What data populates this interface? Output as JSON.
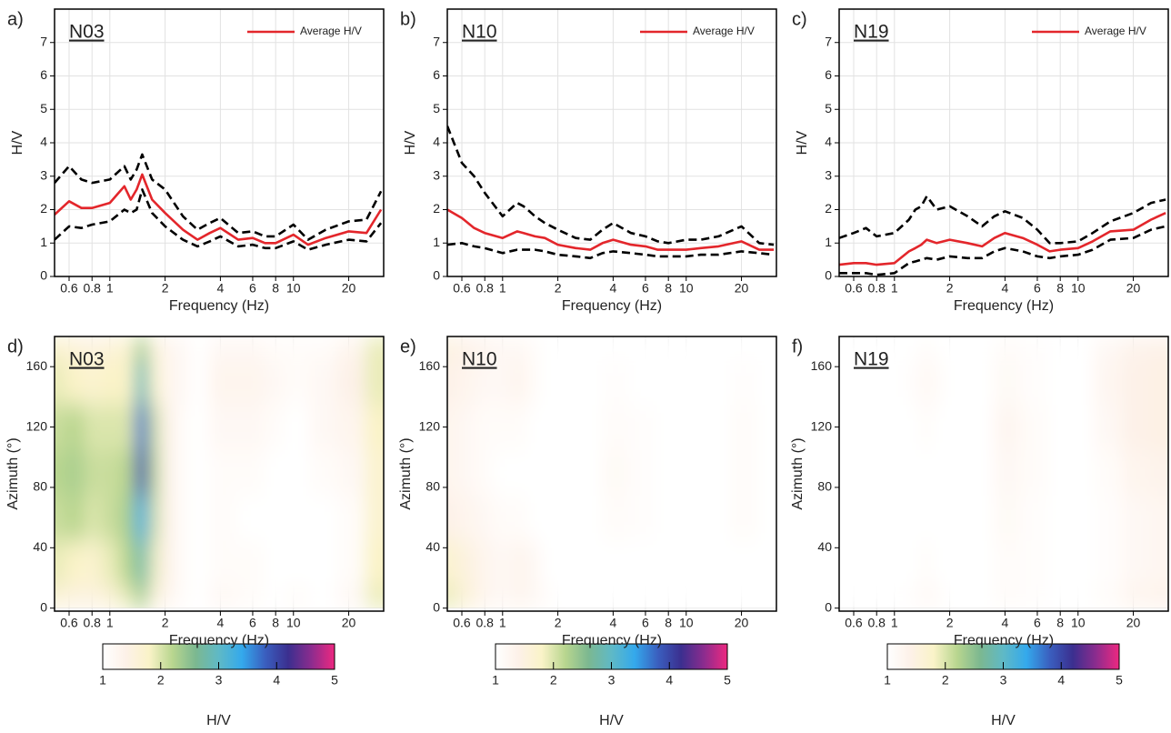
{
  "chart_data": [
    {
      "type": "line",
      "panel_label": "a)",
      "station": "N03",
      "xlabel": "Frequency (Hz)",
      "ylabel": "H/V",
      "log_x": true,
      "grid": true,
      "legend": "upper right",
      "xlim": [
        0.5,
        31
      ],
      "xticks": [
        0.6,
        0.8,
        1,
        2,
        4,
        6,
        8,
        10,
        20
      ],
      "ylim": [
        0,
        8
      ],
      "yticks": [
        0,
        1,
        2,
        3,
        4,
        5,
        6,
        7
      ],
      "x": [
        0.5,
        0.6,
        0.7,
        0.8,
        1,
        1.2,
        1.3,
        1.4,
        1.5,
        1.7,
        2,
        2.5,
        3,
        3.5,
        4,
        5,
        6,
        7,
        8,
        10,
        12,
        15,
        20,
        25,
        30
      ],
      "series": [
        {
          "name": "Average H/V",
          "color": "#e3262b",
          "dash": false,
          "values": [
            1.85,
            2.25,
            2.05,
            2.05,
            2.2,
            2.7,
            2.3,
            2.6,
            3.05,
            2.3,
            1.9,
            1.4,
            1.1,
            1.3,
            1.45,
            1.1,
            1.15,
            1.0,
            1.0,
            1.25,
            0.95,
            1.15,
            1.35,
            1.3,
            2.0
          ]
        },
        {
          "color": "#000000",
          "dash": true,
          "values": [
            2.8,
            3.3,
            2.9,
            2.8,
            2.9,
            3.3,
            2.9,
            3.2,
            3.65,
            2.9,
            2.6,
            1.8,
            1.4,
            1.6,
            1.75,
            1.3,
            1.35,
            1.2,
            1.2,
            1.55,
            1.1,
            1.4,
            1.65,
            1.7,
            2.55
          ]
        },
        {
          "color": "#000000",
          "dash": true,
          "values": [
            1.1,
            1.5,
            1.45,
            1.55,
            1.65,
            2.0,
            1.9,
            2.0,
            2.6,
            1.9,
            1.5,
            1.1,
            0.9,
            1.05,
            1.2,
            0.9,
            0.95,
            0.85,
            0.85,
            1.05,
            0.8,
            0.95,
            1.1,
            1.05,
            1.6
          ]
        }
      ]
    },
    {
      "type": "line",
      "panel_label": "b)",
      "station": "N10",
      "xlabel": "Frequency (Hz)",
      "ylabel": "H/V",
      "log_x": true,
      "grid": true,
      "legend": "upper right",
      "xlim": [
        0.5,
        31
      ],
      "xticks": [
        0.6,
        0.8,
        1,
        2,
        4,
        6,
        8,
        10,
        20
      ],
      "ylim": [
        0,
        8
      ],
      "yticks": [
        0,
        1,
        2,
        3,
        4,
        5,
        6,
        7
      ],
      "x": [
        0.5,
        0.6,
        0.7,
        0.8,
        1,
        1.2,
        1.3,
        1.4,
        1.5,
        1.7,
        2,
        2.5,
        3,
        3.5,
        4,
        5,
        6,
        7,
        8,
        10,
        12,
        15,
        20,
        25,
        30
      ],
      "series": [
        {
          "name": "Average H/V",
          "color": "#e3262b",
          "dash": false,
          "values": [
            2.0,
            1.75,
            1.45,
            1.3,
            1.15,
            1.35,
            1.3,
            1.25,
            1.2,
            1.15,
            0.95,
            0.85,
            0.8,
            1.0,
            1.1,
            0.95,
            0.9,
            0.8,
            0.8,
            0.8,
            0.85,
            0.9,
            1.05,
            0.8,
            0.8
          ]
        },
        {
          "color": "#000000",
          "dash": true,
          "values": [
            4.5,
            3.4,
            3.0,
            2.5,
            1.8,
            2.2,
            2.1,
            1.95,
            1.8,
            1.6,
            1.4,
            1.15,
            1.1,
            1.4,
            1.6,
            1.3,
            1.2,
            1.05,
            1.0,
            1.1,
            1.1,
            1.2,
            1.5,
            1.0,
            0.95
          ]
        },
        {
          "color": "#000000",
          "dash": true,
          "values": [
            0.95,
            1.0,
            0.9,
            0.85,
            0.7,
            0.8,
            0.8,
            0.8,
            0.8,
            0.75,
            0.65,
            0.6,
            0.55,
            0.7,
            0.75,
            0.7,
            0.65,
            0.6,
            0.6,
            0.6,
            0.65,
            0.65,
            0.75,
            0.7,
            0.65
          ]
        }
      ]
    },
    {
      "type": "line",
      "panel_label": "c)",
      "station": "N19",
      "xlabel": "Frequency (Hz)",
      "ylabel": "H/V",
      "log_x": true,
      "grid": true,
      "legend": "upper right",
      "xlim": [
        0.5,
        31
      ],
      "xticks": [
        0.6,
        0.8,
        1,
        2,
        4,
        6,
        8,
        10,
        20
      ],
      "ylim": [
        0,
        8
      ],
      "yticks": [
        0,
        1,
        2,
        3,
        4,
        5,
        6,
        7
      ],
      "x": [
        0.5,
        0.6,
        0.7,
        0.8,
        1,
        1.2,
        1.3,
        1.4,
        1.5,
        1.7,
        2,
        2.5,
        3,
        3.5,
        4,
        5,
        6,
        7,
        8,
        10,
        12,
        15,
        20,
        25,
        30
      ],
      "series": [
        {
          "name": "Average H/V",
          "color": "#e3262b",
          "dash": false,
          "values": [
            0.35,
            0.4,
            0.4,
            0.35,
            0.4,
            0.75,
            0.85,
            0.95,
            1.1,
            1.0,
            1.1,
            1.0,
            0.9,
            1.15,
            1.3,
            1.15,
            0.95,
            0.75,
            0.8,
            0.85,
            1.05,
            1.35,
            1.4,
            1.7,
            1.9
          ]
        },
        {
          "color": "#000000",
          "dash": true,
          "values": [
            1.15,
            1.3,
            1.45,
            1.2,
            1.3,
            1.7,
            2.0,
            2.1,
            2.4,
            2.0,
            2.1,
            1.8,
            1.5,
            1.8,
            1.95,
            1.75,
            1.4,
            1.0,
            1.0,
            1.05,
            1.3,
            1.65,
            1.9,
            2.2,
            2.3
          ]
        },
        {
          "color": "#000000",
          "dash": true,
          "values": [
            0.1,
            0.1,
            0.1,
            0.05,
            0.1,
            0.4,
            0.45,
            0.5,
            0.55,
            0.5,
            0.6,
            0.55,
            0.55,
            0.75,
            0.85,
            0.75,
            0.6,
            0.55,
            0.6,
            0.65,
            0.8,
            1.1,
            1.15,
            1.4,
            1.5
          ]
        }
      ]
    },
    {
      "type": "heatmap",
      "panel_label": "d)",
      "station": "N03",
      "xlabel": "Frequency (Hz)",
      "ylabel": "Azimuth (°)",
      "log_x": true,
      "grid": true,
      "xlim": [
        0.5,
        31
      ],
      "xticks": [
        0.6,
        0.8,
        1,
        2,
        4,
        6,
        8,
        10,
        20
      ],
      "ylim": [
        -2,
        180
      ],
      "yticks": [
        0,
        40,
        80,
        120,
        160
      ],
      "clim": [
        1,
        5
      ],
      "cticks": [
        1,
        2,
        3,
        4,
        5
      ],
      "clabel": "H/V",
      "colorscale": [
        "#ffffff",
        "#fdf1e8",
        "#faf3c8",
        "#b9d68f",
        "#7cb890",
        "#5fb9c6",
        "#34a9ec",
        "#3a5fbf",
        "#3b2f8f",
        "#8c2c8e",
        "#ee2880"
      ],
      "x": [
        0.5,
        0.65,
        0.8,
        1,
        1.25,
        1.5,
        1.75,
        2,
        2.5,
        3,
        4,
        6,
        8,
        10,
        15,
        20,
        30
      ],
      "y": [
        0,
        30,
        60,
        90,
        120,
        150,
        180
      ],
      "z": [
        [
          1.6,
          1.9,
          2.1,
          2.2,
          2.1,
          1.9,
          1.7
        ],
        [
          1.5,
          1.8,
          2.2,
          2.3,
          2.2,
          1.8,
          1.6
        ],
        [
          1.5,
          1.7,
          2.0,
          2.1,
          2.0,
          1.7,
          1.5
        ],
        [
          1.6,
          1.9,
          2.1,
          2.1,
          2.0,
          1.8,
          1.6
        ],
        [
          1.9,
          2.2,
          2.3,
          2.2,
          2.0,
          1.8,
          1.7
        ],
        [
          2.3,
          2.8,
          3.3,
          3.9,
          3.7,
          2.9,
          2.3
        ],
        [
          1.6,
          1.9,
          2.1,
          2.2,
          2.1,
          1.8,
          1.6
        ],
        [
          1.3,
          1.4,
          1.4,
          1.4,
          1.4,
          1.3,
          1.3
        ],
        [
          1.1,
          1.1,
          1.1,
          1.1,
          1.1,
          1.2,
          1.2
        ],
        [
          1.0,
          1.0,
          1.0,
          1.0,
          1.0,
          1.0,
          1.0
        ],
        [
          1.2,
          1.1,
          1.1,
          1.1,
          1.2,
          1.3,
          1.2
        ],
        [
          1.1,
          1.1,
          1.0,
          1.1,
          1.2,
          1.3,
          1.2
        ],
        [
          1.0,
          1.0,
          1.0,
          1.0,
          1.1,
          1.2,
          1.1
        ],
        [
          1.1,
          1.0,
          1.0,
          1.0,
          1.0,
          1.1,
          1.1
        ],
        [
          1.0,
          1.0,
          1.0,
          1.1,
          1.2,
          1.2,
          1.1
        ],
        [
          1.2,
          1.1,
          1.1,
          1.2,
          1.3,
          1.4,
          1.3
        ],
        [
          1.9,
          1.8,
          1.7,
          1.7,
          1.8,
          1.9,
          1.9
        ]
      ]
    },
    {
      "type": "heatmap",
      "panel_label": "e)",
      "station": "N10",
      "xlabel": "Frequency (Hz)",
      "ylabel": "Azimuth (°)",
      "log_x": true,
      "grid": true,
      "xlim": [
        0.5,
        31
      ],
      "xticks": [
        0.6,
        0.8,
        1,
        2,
        4,
        6,
        8,
        10,
        20
      ],
      "ylim": [
        -2,
        180
      ],
      "yticks": [
        0,
        40,
        80,
        120,
        160
      ],
      "clim": [
        1,
        5
      ],
      "cticks": [
        1,
        2,
        3,
        4,
        5
      ],
      "clabel": "H/V",
      "colorscale": [
        "#ffffff",
        "#fdf1e8",
        "#faf3c8",
        "#b9d68f",
        "#7cb890",
        "#5fb9c6",
        "#34a9ec",
        "#3a5fbf",
        "#3b2f8f",
        "#8c2c8e",
        "#ee2880"
      ],
      "x": [
        0.5,
        0.65,
        0.8,
        1,
        1.25,
        1.5,
        1.75,
        2,
        2.5,
        3,
        4,
        6,
        8,
        10,
        15,
        20,
        30
      ],
      "y": [
        0,
        30,
        60,
        90,
        120,
        150,
        180
      ],
      "z": [
        [
          1.9,
          1.7,
          1.4,
          1.3,
          1.3,
          1.4,
          1.5
        ],
        [
          1.6,
          1.5,
          1.3,
          1.2,
          1.2,
          1.3,
          1.4
        ],
        [
          1.3,
          1.3,
          1.2,
          1.1,
          1.1,
          1.2,
          1.3
        ],
        [
          1.2,
          1.2,
          1.1,
          1.0,
          1.1,
          1.2,
          1.2
        ],
        [
          1.3,
          1.3,
          1.1,
          1.0,
          1.1,
          1.3,
          1.2
        ],
        [
          1.2,
          1.2,
          1.0,
          1.0,
          1.0,
          1.1,
          1.1
        ],
        [
          1.1,
          1.0,
          1.0,
          1.0,
          1.0,
          1.0,
          1.0
        ],
        [
          1.0,
          1.0,
          1.0,
          1.0,
          1.0,
          1.0,
          1.0
        ],
        [
          1.0,
          1.0,
          1.0,
          1.0,
          1.0,
          1.0,
          1.0
        ],
        [
          1.0,
          1.0,
          1.0,
          1.0,
          1.0,
          1.0,
          1.0
        ],
        [
          1.0,
          1.0,
          1.1,
          1.15,
          1.1,
          1.05,
          1.0
        ],
        [
          1.0,
          1.0,
          1.05,
          1.05,
          1.05,
          1.0,
          1.0
        ],
        [
          1.0,
          1.0,
          1.0,
          1.0,
          1.0,
          1.0,
          1.0
        ],
        [
          1.0,
          1.0,
          1.0,
          1.0,
          1.0,
          1.0,
          1.0
        ],
        [
          1.0,
          1.0,
          1.0,
          1.0,
          1.0,
          1.0,
          1.0
        ],
        [
          1.0,
          1.0,
          1.1,
          1.1,
          1.1,
          1.05,
          1.0
        ],
        [
          1.0,
          1.0,
          1.0,
          1.0,
          1.0,
          1.0,
          1.0
        ]
      ]
    },
    {
      "type": "heatmap",
      "panel_label": "f)",
      "station": "N19",
      "xlabel": "Frequency (Hz)",
      "ylabel": "Azimuth (°)",
      "log_x": true,
      "grid": true,
      "xlim": [
        0.5,
        31
      ],
      "xticks": [
        0.6,
        0.8,
        1,
        2,
        4,
        6,
        8,
        10,
        20
      ],
      "ylim": [
        -2,
        180
      ],
      "yticks": [
        0,
        40,
        80,
        120,
        160
      ],
      "clim": [
        1,
        5
      ],
      "cticks": [
        1,
        2,
        3,
        4,
        5
      ],
      "clabel": "H/V",
      "colorscale": [
        "#ffffff",
        "#fdf1e8",
        "#faf3c8",
        "#b9d68f",
        "#7cb890",
        "#5fb9c6",
        "#34a9ec",
        "#3a5fbf",
        "#3b2f8f",
        "#8c2c8e",
        "#ee2880"
      ],
      "x": [
        0.5,
        0.65,
        0.8,
        1,
        1.25,
        1.5,
        1.75,
        2,
        2.5,
        3,
        4,
        6,
        8,
        10,
        15,
        20,
        30
      ],
      "y": [
        0,
        30,
        60,
        90,
        120,
        150,
        180
      ],
      "z": [
        [
          1.0,
          1.0,
          1.0,
          1.0,
          1.0,
          1.0,
          1.0
        ],
        [
          1.0,
          1.0,
          1.0,
          1.0,
          1.0,
          1.0,
          1.0
        ],
        [
          1.0,
          1.0,
          1.0,
          1.0,
          1.0,
          1.0,
          1.0
        ],
        [
          1.0,
          1.0,
          1.0,
          1.0,
          1.0,
          1.0,
          1.0
        ],
        [
          1.05,
          1.0,
          1.0,
          1.0,
          1.0,
          1.05,
          1.0
        ],
        [
          1.2,
          1.1,
          1.0,
          1.0,
          1.1,
          1.2,
          1.1
        ],
        [
          1.1,
          1.0,
          1.0,
          1.0,
          1.0,
          1.1,
          1.0
        ],
        [
          1.0,
          1.0,
          1.0,
          1.0,
          1.0,
          1.0,
          1.0
        ],
        [
          1.0,
          1.0,
          1.0,
          1.0,
          1.0,
          1.0,
          1.0
        ],
        [
          1.0,
          1.0,
          1.0,
          1.0,
          1.0,
          1.0,
          1.0
        ],
        [
          1.1,
          1.1,
          1.15,
          1.2,
          1.25,
          1.15,
          1.1
        ],
        [
          1.05,
          1.05,
          1.05,
          1.1,
          1.1,
          1.05,
          1.05
        ],
        [
          1.0,
          1.0,
          1.0,
          1.0,
          1.0,
          1.0,
          1.0
        ],
        [
          1.0,
          1.0,
          1.0,
          1.0,
          1.0,
          1.0,
          1.0
        ],
        [
          1.1,
          1.05,
          1.05,
          1.1,
          1.2,
          1.25,
          1.2
        ],
        [
          1.3,
          1.2,
          1.2,
          1.3,
          1.4,
          1.4,
          1.35
        ],
        [
          1.35,
          1.25,
          1.25,
          1.35,
          1.45,
          1.45,
          1.4
        ]
      ]
    }
  ]
}
